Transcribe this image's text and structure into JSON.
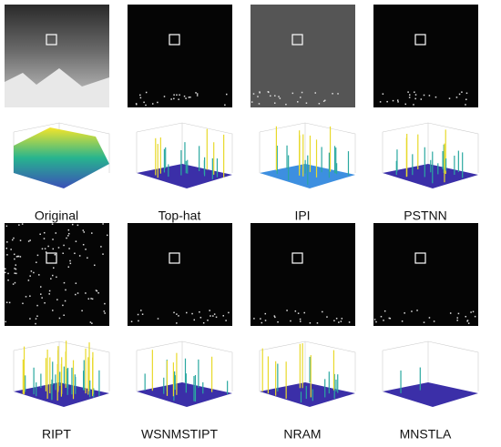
{
  "panels": [
    {
      "label": "Original"
    },
    {
      "label": "Top-hat"
    },
    {
      "label": "IPI"
    },
    {
      "label": "PSTNN"
    },
    {
      "label": "RIPT"
    },
    {
      "label": "WSNMSTIPT"
    },
    {
      "label": "NRAM"
    },
    {
      "label": "MNSTLA"
    }
  ]
}
